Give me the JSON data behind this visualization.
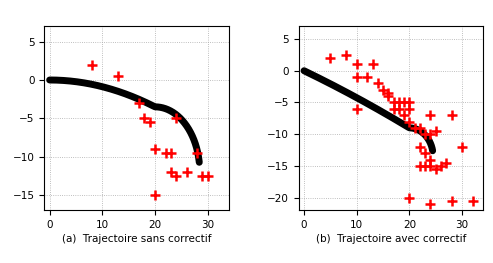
{
  "title_a": "(a)  Trajectoire sans correctif",
  "title_b": "(b)  Trajectoire avec correctif",
  "background_color": "#ffffff",
  "ax_a": {
    "xlim": [
      -1,
      34
    ],
    "ylim": [
      -17,
      7
    ],
    "xticks": [
      0,
      10,
      20,
      30
    ],
    "yticks": [
      -15,
      -10,
      -5,
      0,
      5
    ]
  },
  "ax_b": {
    "xlim": [
      -1,
      34
    ],
    "ylim": [
      -22,
      7
    ],
    "xticks": [
      0,
      10,
      20,
      30
    ],
    "yticks": [
      -20,
      -15,
      -10,
      -5,
      0,
      5
    ]
  },
  "landmarks_a": [
    [
      8,
      2
    ],
    [
      13,
      0.5
    ],
    [
      17,
      -3
    ],
    [
      18,
      -5
    ],
    [
      19,
      -5.5
    ],
    [
      20,
      -9
    ],
    [
      24,
      -5
    ],
    [
      22,
      -9.5
    ],
    [
      23,
      -9.5
    ],
    [
      23,
      -12
    ],
    [
      24,
      -12.5
    ],
    [
      26,
      -12
    ],
    [
      28,
      -9.5
    ],
    [
      29,
      -12.5
    ],
    [
      30,
      -12.5
    ],
    [
      20,
      -15
    ]
  ],
  "landmarks_b": [
    [
      5,
      2
    ],
    [
      8,
      2.5
    ],
    [
      10,
      1
    ],
    [
      13,
      1
    ],
    [
      10,
      -1
    ],
    [
      12,
      -1
    ],
    [
      14,
      -2
    ],
    [
      15,
      -3
    ],
    [
      16,
      -3.5
    ],
    [
      17,
      -5
    ],
    [
      17,
      -6
    ],
    [
      18,
      -5
    ],
    [
      18,
      -6
    ],
    [
      19,
      -5
    ],
    [
      20,
      -5
    ],
    [
      20,
      -6
    ],
    [
      10,
      -6
    ],
    [
      16,
      -4
    ],
    [
      19,
      -7
    ],
    [
      20,
      -8
    ],
    [
      21,
      -9
    ],
    [
      22,
      -9
    ],
    [
      23,
      -10
    ],
    [
      24,
      -10
    ],
    [
      25,
      -9.5
    ],
    [
      24,
      -7
    ],
    [
      28,
      -7
    ],
    [
      22,
      -12
    ],
    [
      23,
      -13
    ],
    [
      24,
      -14
    ],
    [
      22,
      -15
    ],
    [
      23,
      -15
    ],
    [
      24,
      -15
    ],
    [
      25,
      -15.5
    ],
    [
      26,
      -15
    ],
    [
      27,
      -14.5
    ],
    [
      30,
      -12
    ],
    [
      20,
      -20
    ],
    [
      24,
      -21
    ],
    [
      28,
      -20.5
    ],
    [
      32,
      -20.5
    ]
  ],
  "marker_color": "#ff0000",
  "marker_size": 7,
  "marker_lw": 1.8,
  "traj_color": "#000000",
  "traj_linewidth": 5,
  "traj_alpha": 1.0
}
